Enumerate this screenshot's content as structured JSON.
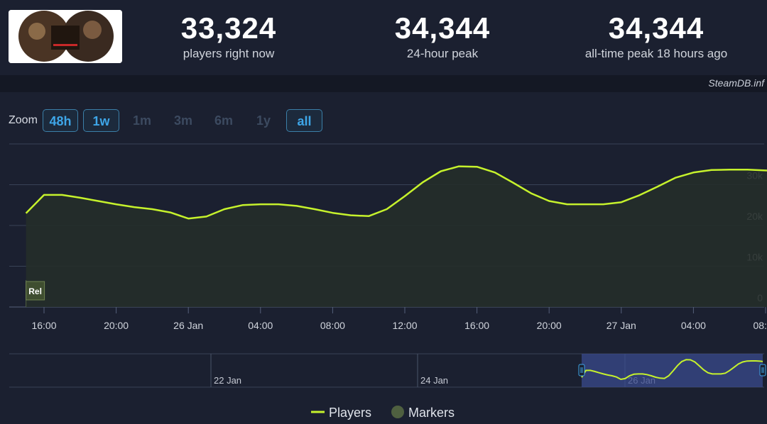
{
  "header": {
    "logo_alt": "LIKE A DRAGON INFINITE WEALTH",
    "stats": [
      {
        "value": "33,324",
        "label": "players right now"
      },
      {
        "value": "34,344",
        "label": "24-hour peak"
      },
      {
        "value": "34,344",
        "label": "all-time peak 18 hours ago"
      }
    ],
    "credit": "SteamDB.inf"
  },
  "zoom": {
    "label": "Zoom",
    "buttons": [
      {
        "label": "48h",
        "active": true
      },
      {
        "label": "1w",
        "active": true
      },
      {
        "label": "1m",
        "active": false
      },
      {
        "label": "3m",
        "active": false
      },
      {
        "label": "6m",
        "active": false
      },
      {
        "label": "1y",
        "active": false
      },
      {
        "label": "all",
        "active": true
      }
    ]
  },
  "chart_data": {
    "type": "area",
    "title": "",
    "xlabel": "",
    "ylabel": "",
    "ylim": [
      0,
      40000
    ],
    "grid": true,
    "x_tick_labels": [
      "16:00",
      "20:00",
      "26 Jan",
      "04:00",
      "08:00",
      "12:00",
      "16:00",
      "20:00",
      "27 Jan",
      "04:00",
      "08:00"
    ],
    "y_tick_labels": [
      "0",
      "10k",
      "20k",
      "30k"
    ],
    "y_ticks": [
      0,
      10000,
      20000,
      30000
    ],
    "x_range_hours": [
      -1,
      40.6
    ],
    "series": [
      {
        "name": "Players",
        "color": "#c6f22c",
        "x_hours": [
          -1,
          0,
          1,
          2,
          3,
          4,
          5,
          6,
          7,
          8,
          9,
          10,
          11,
          12,
          13,
          14,
          15,
          16,
          17,
          18,
          19,
          20,
          21,
          22,
          23,
          24,
          25,
          26,
          27,
          28,
          29,
          30,
          31,
          32,
          33,
          34,
          35,
          36,
          37,
          38,
          39,
          40,
          40.6
        ],
        "values": [
          23000,
          27500,
          27500,
          26800,
          26000,
          25200,
          24500,
          24000,
          23200,
          21700,
          22200,
          24000,
          25000,
          25200,
          25200,
          24800,
          24000,
          23100,
          22500,
          22300,
          24000,
          27200,
          30600,
          33300,
          34500,
          34400,
          33000,
          30500,
          27900,
          26000,
          25200,
          25200,
          25200,
          25700,
          27400,
          29500,
          31700,
          33000,
          33600,
          33700,
          33700,
          33500,
          33300
        ]
      }
    ],
    "markers": [
      {
        "label": "Rel",
        "x_hours": -1
      }
    ],
    "navigator": {
      "tick_labels": [
        "22 Jan",
        "24 Jan",
        "26 Jan"
      ]
    },
    "legend": [
      {
        "name": "Players",
        "color": "#c6f22c"
      },
      {
        "name": "Markers",
        "color": "#4f6040"
      }
    ],
    "legend_position": "bottom"
  }
}
